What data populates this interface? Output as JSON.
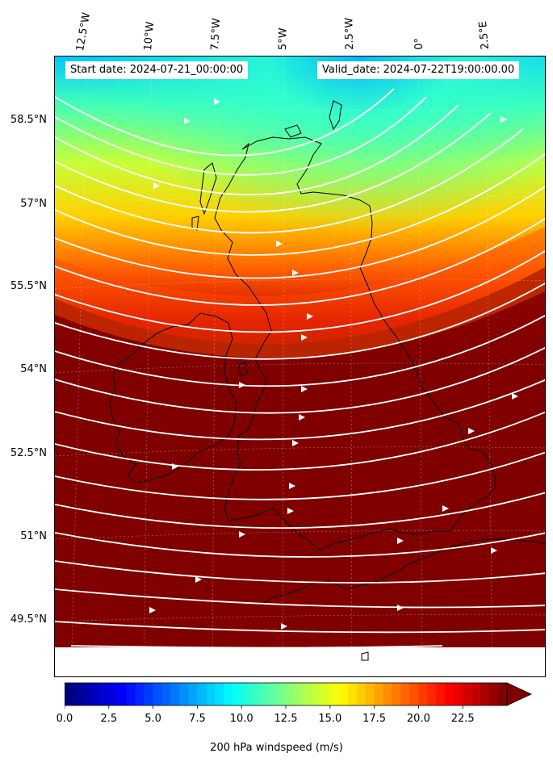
{
  "map": {
    "start_date": "Start date: 2024-07-21_00:00:00",
    "valid_date": "Valid_date: 2024-07-22T19:00:00.00",
    "lon_labels": [
      "12.5°W",
      "10°W",
      "7.5°W",
      "5°W",
      "2.5°W",
      "0°",
      "2.5°E"
    ],
    "lat_labels": [
      "58.5°N",
      "57°N",
      "55.5°N",
      "54°N",
      "52.5°N",
      "51°N",
      "49.5°N"
    ],
    "colors": {
      "background_max": "#800000",
      "streamline": "#ffffff",
      "coast": "#000000"
    }
  },
  "colorbar": {
    "label": "200 hPa windspeed (m/s)",
    "ticks": [
      "0.0",
      "2.5",
      "5.0",
      "7.5",
      "10.0",
      "12.5",
      "15.0",
      "17.5",
      "20.0",
      "22.5"
    ],
    "range": [
      0,
      25
    ],
    "extend": "max",
    "colormap": "jet"
  }
}
